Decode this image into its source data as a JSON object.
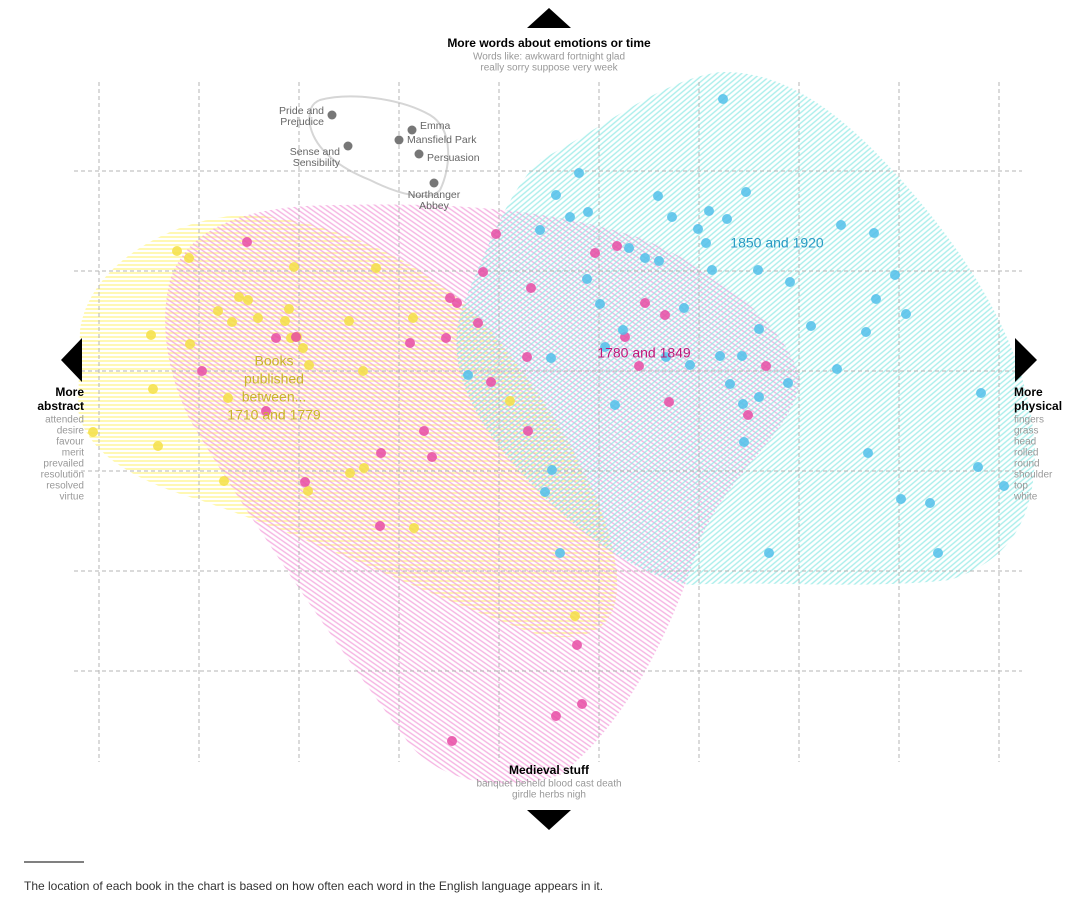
{
  "chart_data": {
    "type": "scatter",
    "xlim": [
      -0.25,
      9.25
    ],
    "ylim": [
      -1,
      6
    ],
    "xticks": [
      0,
      1,
      2,
      3,
      4,
      5,
      6,
      7,
      8,
      9
    ],
    "yticks": [
      0,
      1,
      2,
      3,
      4,
      5
    ],
    "grid": true,
    "directions": {
      "top": {
        "title_lines": [
          "More words about emotions or time"
        ],
        "word_lines": [
          "Words like: awkward fortnight glad",
          "really sorry suppose very week"
        ]
      },
      "left": {
        "title_lines": [
          "More",
          "abstract"
        ],
        "word_lines": [
          "attended",
          "desire",
          "favour",
          "merit",
          "prevailed",
          "resolution",
          "resolved",
          "virtue"
        ]
      },
      "right": {
        "title_lines": [
          "More",
          "physical"
        ],
        "word_lines": [
          "fingers",
          "grass",
          "head",
          "rolled",
          "round",
          "shoulder",
          "top",
          "white"
        ]
      },
      "bottom": {
        "title_lines": [
          "Medieval stuff"
        ],
        "word_lines": [
          "banquet beheld blood cast death",
          "girdle herbs nigh"
        ]
      }
    },
    "series_intro_lines": [
      "Books",
      "published",
      "between..."
    ],
    "series": [
      {
        "name": "1710 and 1779",
        "color": "#f5df45",
        "label_color": "#c9b52c",
        "x": [
          0.78,
          0.9,
          1.95,
          2.77,
          1.4,
          1.49,
          1.19,
          1.9,
          1.33,
          1.59,
          1.86,
          2.5,
          3.14,
          0.52,
          0.91,
          1.92,
          1.98,
          2.04,
          2.1,
          2.64,
          0.54,
          1.29,
          4.11,
          -0.06,
          0.59,
          2.51,
          2.65,
          1.25,
          2.09,
          3.15,
          4.76
        ],
        "y": [
          4.2,
          4.13,
          4.04,
          4.03,
          3.74,
          3.71,
          3.6,
          3.62,
          3.49,
          3.53,
          3.5,
          3.5,
          3.53,
          3.36,
          3.27,
          3.33,
          3.34,
          3.23,
          3.06,
          3.0,
          2.82,
          2.73,
          2.7,
          2.39,
          2.25,
          1.98,
          2.03,
          1.9,
          1.8,
          1.43,
          0.55
        ]
      },
      {
        "name": "1780 and 1849",
        "color": "#e84ca4",
        "label_color": "#c0187a",
        "x": [
          1.48,
          3.97,
          4.96,
          5.18,
          3.84,
          4.32,
          3.51,
          3.58,
          3.79,
          3.47,
          3.11,
          1.97,
          1.77,
          1.03,
          4.28,
          5.26,
          5.46,
          5.66,
          5.4,
          5.7,
          3.92,
          1.67,
          3.25,
          2.82,
          3.33,
          4.29,
          2.06,
          2.81,
          6.49,
          6.67,
          4.78,
          4.83,
          4.57,
          3.53
        ],
        "y": [
          4.29,
          4.37,
          4.18,
          4.25,
          3.99,
          3.83,
          3.73,
          3.68,
          3.48,
          3.33,
          3.28,
          3.34,
          3.33,
          3.0,
          3.14,
          3.34,
          3.68,
          3.56,
          3.05,
          2.69,
          2.89,
          2.6,
          2.4,
          2.18,
          2.14,
          2.4,
          1.89,
          1.45,
          2.56,
          3.05,
          0.26,
          -0.33,
          -0.45,
          -0.7
        ]
      },
      {
        "name": "1850 and 1920",
        "color": "#52c0ea",
        "label_color": "#2a9ac4",
        "x": [
          6.24,
          4.8,
          4.57,
          5.59,
          6.47,
          4.89,
          4.71,
          4.41,
          5.73,
          6.1,
          6.28,
          5.99,
          7.42,
          7.75,
          6.07,
          5.3,
          5.46,
          5.6,
          6.13,
          6.59,
          7.96,
          4.88,
          6.91,
          5.01,
          5.85,
          7.77,
          8.07,
          6.6,
          7.12,
          7.67,
          5.24,
          5.06,
          4.52,
          5.67,
          5.91,
          6.21,
          6.43,
          7.38,
          3.69,
          6.31,
          6.89,
          5.16,
          6.44,
          6.6,
          6.45,
          8.82,
          4.53,
          4.46,
          7.69,
          8.79,
          9.05,
          8.02,
          8.31,
          4.61,
          6.7,
          8.39
        ],
        "y": [
          5.72,
          4.98,
          4.76,
          4.75,
          4.79,
          4.59,
          4.54,
          4.41,
          4.54,
          4.6,
          4.52,
          4.42,
          4.46,
          4.38,
          4.28,
          4.23,
          4.13,
          4.1,
          4.01,
          4.01,
          3.96,
          3.92,
          3.89,
          3.67,
          3.63,
          3.72,
          3.57,
          3.42,
          3.45,
          3.39,
          3.41,
          3.24,
          3.13,
          3.14,
          3.06,
          3.15,
          3.15,
          3.02,
          2.96,
          2.87,
          2.88,
          2.66,
          2.67,
          2.74,
          2.29,
          2.78,
          2.01,
          1.79,
          2.18,
          2.04,
          1.85,
          1.72,
          1.68,
          1.18,
          1.18,
          1.18
        ]
      }
    ],
    "labeled_points": {
      "color": "#777777",
      "points": [
        {
          "lines": [
            "Pride and",
            "Prejudice"
          ],
          "x": 2.33,
          "y": 5.56
        },
        {
          "lines": [
            "Sense and",
            "Sensibility"
          ],
          "x": 2.49,
          "y": 5.25
        },
        {
          "lines": [
            "Emma"
          ],
          "x": 3.13,
          "y": 5.41
        },
        {
          "lines": [
            "Mansfield Park"
          ],
          "x": 3.0,
          "y": 5.31
        },
        {
          "lines": [
            "Persuasion"
          ],
          "x": 3.2,
          "y": 5.17
        },
        {
          "lines": [
            "Northanger",
            "Abbey"
          ],
          "x": 3.35,
          "y": 4.88
        }
      ]
    }
  },
  "footnote": "The location of each book in the chart is based on how often each word in the English language appears in it."
}
